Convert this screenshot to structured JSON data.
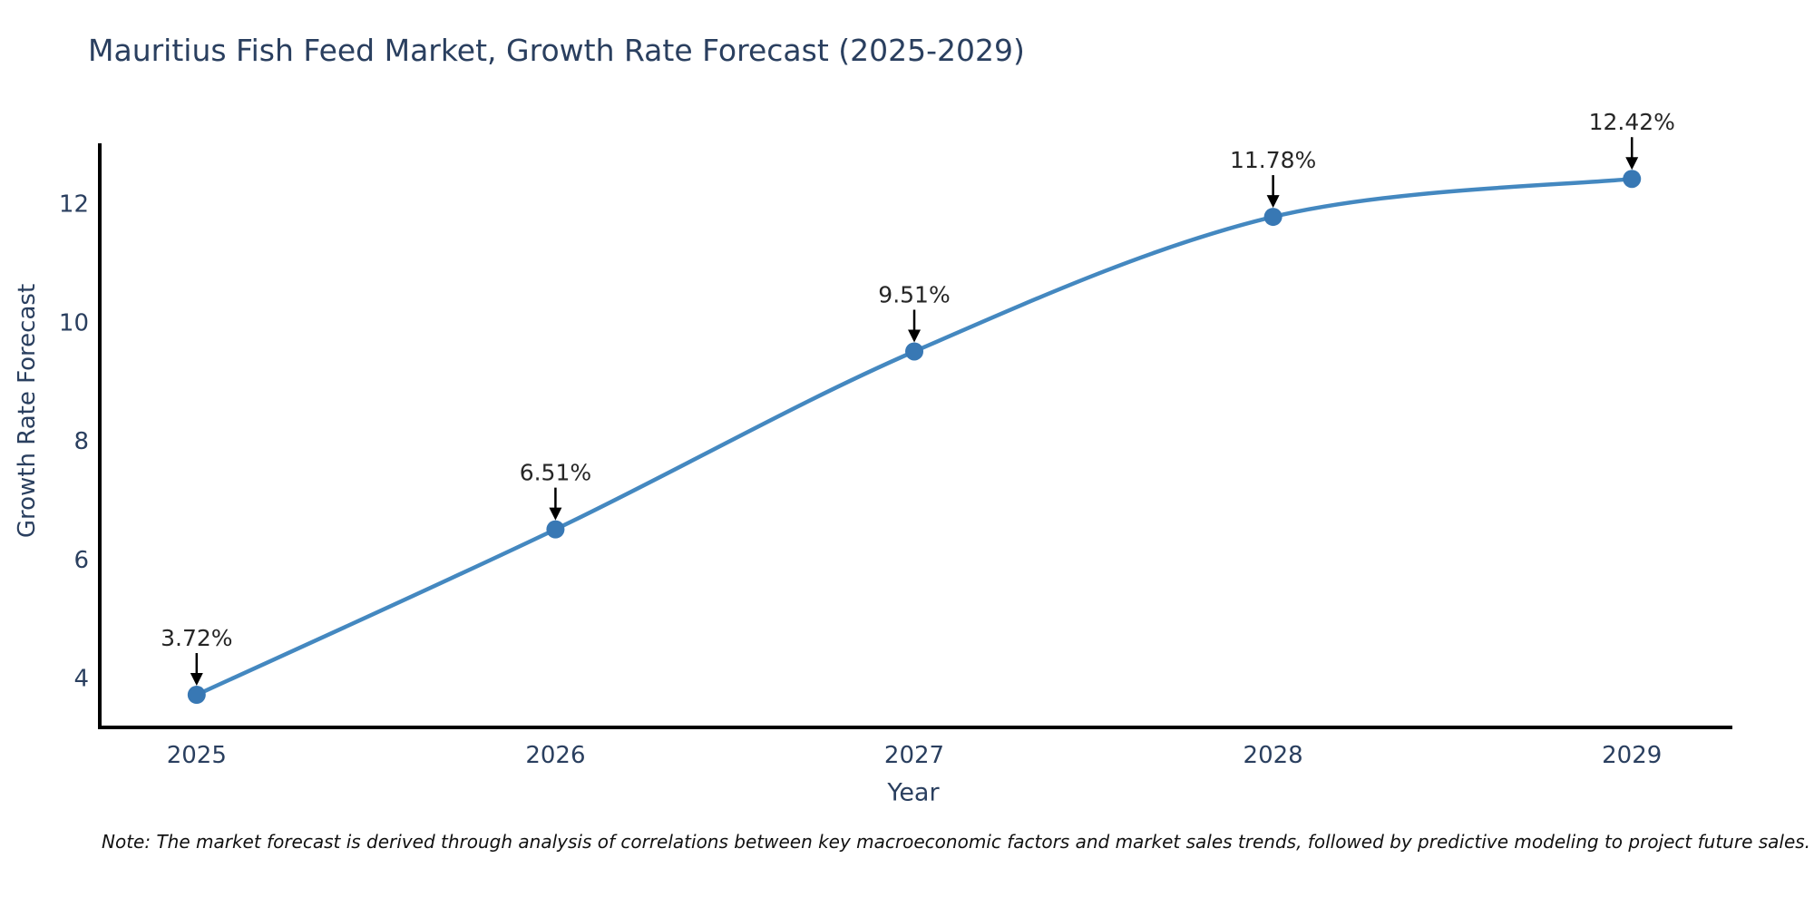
{
  "title": "Mauritius Fish Feed Market, Growth Rate Forecast (2025-2029)",
  "note": "Note: The market forecast is derived through analysis of correlations between key macroeconomic factors and market sales trends, followed by predictive modeling to project future sales.",
  "chart_data": {
    "type": "line",
    "title": "Mauritius Fish Feed Market, Growth Rate Forecast (2025-2029)",
    "xlabel": "Year",
    "ylabel": "Growth Rate Forecast",
    "x": [
      2025,
      2026,
      2027,
      2028,
      2029
    ],
    "y": [
      3.72,
      6.51,
      9.51,
      11.78,
      12.42
    ],
    "point_labels": [
      "3.72%",
      "6.51%",
      "9.51%",
      "11.78%",
      "12.42%"
    ],
    "xtick_labels": [
      "2025",
      "2026",
      "2027",
      "2028",
      "2029"
    ],
    "yticks": [
      4,
      6,
      8,
      10,
      12
    ],
    "xlim": [
      2024.73,
      2029.28
    ],
    "ylim": [
      3.17,
      13.02
    ],
    "grid": false,
    "legend": "none",
    "line_shape": "spline",
    "colors": {
      "line": "#4488c0",
      "marker": "#3878b4",
      "arrow": "#000000",
      "axis": "#000000",
      "title": "#2a3f5f",
      "tick": "#2a3f5f",
      "annotation": "#262626",
      "note": "#111111"
    }
  }
}
